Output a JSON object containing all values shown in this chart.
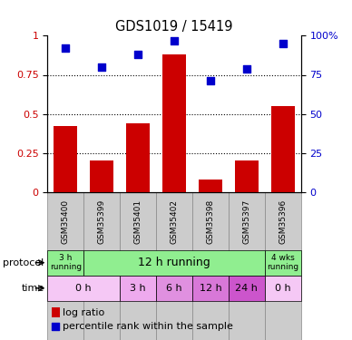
{
  "title": "GDS1019 / 15419",
  "samples": [
    "GSM35400",
    "GSM35399",
    "GSM35401",
    "GSM35402",
    "GSM35398",
    "GSM35397",
    "GSM35396"
  ],
  "log_ratio": [
    0.42,
    0.2,
    0.44,
    0.88,
    0.08,
    0.2,
    0.55
  ],
  "percentile_rank": [
    92,
    80,
    88,
    97,
    71,
    79,
    95
  ],
  "bar_color": "#cc0000",
  "dot_color": "#0000cc",
  "ylim_left": [
    0,
    1.0
  ],
  "ylim_right": [
    0,
    100
  ],
  "yticks_left": [
    0,
    0.25,
    0.5,
    0.75,
    1.0
  ],
  "ytick_labels_left": [
    "0",
    "0.25",
    "0.5",
    "0.75",
    "1"
  ],
  "yticks_right": [
    0,
    25,
    50,
    75,
    100
  ],
  "ytick_labels_right": [
    "0",
    "25",
    "50",
    "75",
    "100%"
  ],
  "label_color_left": "#cc0000",
  "label_color_right": "#0000cc",
  "sample_box_color": "#cccccc",
  "prot_data": [
    [
      0,
      1,
      "#90ee90",
      "3 h\nrunning",
      6.5
    ],
    [
      1,
      6,
      "#90ee90",
      "12 h running",
      9
    ],
    [
      6,
      7,
      "#90ee90",
      "4 wks\nrunning",
      6.5
    ]
  ],
  "time_data": [
    [
      0,
      2,
      "#f5c8f5",
      "0 h",
      8
    ],
    [
      2,
      3,
      "#eeaaee",
      "3 h",
      8
    ],
    [
      3,
      4,
      "#e090e0",
      "6 h",
      8
    ],
    [
      4,
      5,
      "#d878d8",
      "12 h",
      8
    ],
    [
      5,
      6,
      "#cc55cc",
      "24 h",
      8
    ],
    [
      6,
      7,
      "#f5c8f5",
      "0 h",
      8
    ]
  ],
  "legend_items": [
    {
      "color": "#cc0000",
      "type": "rect",
      "label": "log ratio"
    },
    {
      "color": "#0000cc",
      "type": "square",
      "label": "percentile rank within the sample"
    }
  ]
}
